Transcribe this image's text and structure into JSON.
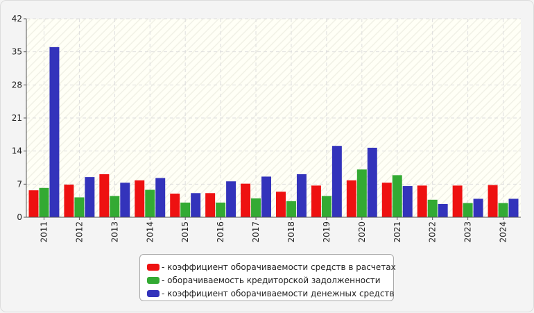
{
  "chart_data": {
    "type": "bar",
    "categories": [
      "2011",
      "2012",
      "2013",
      "2014",
      "2015",
      "2016",
      "2017",
      "2018",
      "2019",
      "2020",
      "2021",
      "2022",
      "2023",
      "2024"
    ],
    "series": [
      {
        "name": "- коэффициент оборачиваемости средств в расчетах",
        "color": "#ee1111",
        "values": [
          5.7,
          6.9,
          9.1,
          7.8,
          5.0,
          5.1,
          7.1,
          5.4,
          6.7,
          7.8,
          7.3,
          6.7,
          6.7,
          6.8
        ]
      },
      {
        "name": "- оборачиваемость кредиторской задолженности",
        "color": "#33aa33",
        "values": [
          6.2,
          4.2,
          4.5,
          5.8,
          3.1,
          3.1,
          4.0,
          3.4,
          4.5,
          10.1,
          8.9,
          3.7,
          3.0,
          3.0
        ]
      },
      {
        "name": "- коэффициент оборачиваемости денежных средств",
        "color": "#3333bb",
        "values": [
          36.0,
          8.5,
          7.3,
          8.3,
          5.1,
          7.6,
          8.6,
          9.1,
          15.1,
          14.7,
          6.6,
          2.8,
          3.9,
          3.9
        ]
      }
    ],
    "y_ticks": [
      "0",
      "7",
      "14",
      "21",
      "28",
      "35",
      "42"
    ],
    "ylim": [
      0,
      42
    ],
    "grid": true,
    "legend_position": "bottom-center",
    "xlabel": "",
    "ylabel": "",
    "title": ""
  }
}
